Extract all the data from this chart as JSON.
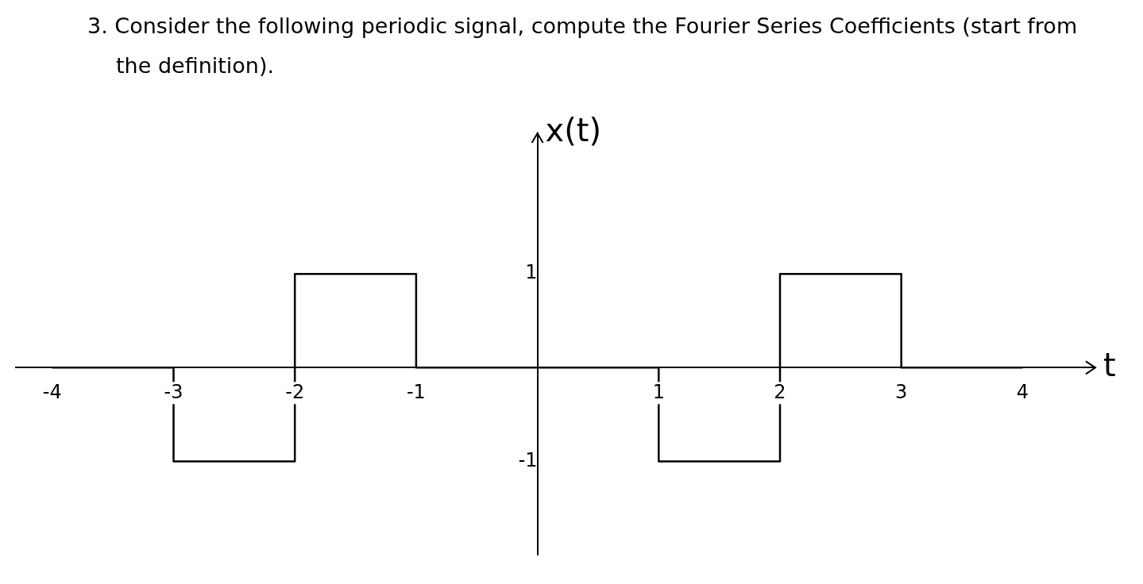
{
  "chart_data": {
    "type": "step",
    "title": "3. Consider the following periodic signal, compute the Fourier Series Coefficients (start from the definition).",
    "xlabel": "t",
    "ylabel": "x(t)",
    "x": [
      -4,
      -3,
      -2,
      -1,
      1,
      2,
      3,
      4
    ],
    "series": [
      {
        "color": "#000000",
        "values": [
          0,
          -1,
          1,
          0,
          -1,
          1,
          0,
          0
        ]
      }
    ],
    "xlim": [
      -4.3,
      4.6
    ],
    "xticks": [
      -4,
      -3,
      -2,
      -1,
      1,
      2,
      3,
      4
    ],
    "ylim": [
      -2,
      2.5
    ],
    "yticks": [
      1,
      -1
    ],
    "grid": false,
    "legend": false,
    "marker": "none",
    "line_style": "solid"
  }
}
